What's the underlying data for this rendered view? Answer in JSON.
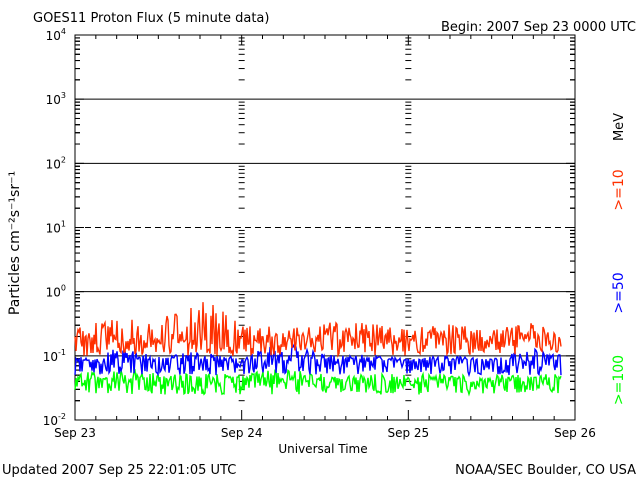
{
  "header": {
    "title": "GOES11 Proton Flux (5 minute data)",
    "begin": "Begin: 2007 Sep 23 0000 UTC"
  },
  "footer": {
    "updated": "Updated 2007 Sep 25 22:01:05 UTC",
    "credit": "NOAA/SEC Boulder, CO USA"
  },
  "chart_data": {
    "type": "line",
    "title": "GOES11 Proton Flux (5 minute data)",
    "xlabel": "Universal Time",
    "ylabel": "Particles cm⁻²s⁻¹sr⁻¹",
    "yscale": "log",
    "ylim": [
      0.01,
      10000
    ],
    "xlim": [
      "2007-09-23 00:00",
      "2007-09-26 00:00"
    ],
    "x_tick_labels": [
      "Sep 23",
      "Sep 24",
      "Sep 25",
      "Sep 26"
    ],
    "y_tick_labels": [
      {
        "base": "10",
        "exp": "4"
      },
      {
        "base": "10",
        "exp": "3"
      },
      {
        "base": "10",
        "exp": "2"
      },
      {
        "base": "10",
        "exp": "1"
      },
      {
        "base": "10",
        "exp": "0"
      },
      {
        "base": "10",
        "exp": "-1"
      },
      {
        "base": "10",
        "exp": "-2"
      }
    ],
    "unit_label": "MeV",
    "thresholds": [
      {
        "value": 1000,
        "style": "solid"
      },
      {
        "value": 100,
        "style": "solid"
      },
      {
        "value": 10,
        "style": "dashed"
      },
      {
        "value": 1,
        "style": "solid"
      },
      {
        "value": 0.1,
        "style": "solid"
      }
    ],
    "series": [
      {
        "name": ">=10",
        "color": "#ff3000",
        "baseline": 0.18,
        "min": 0.1,
        "max": 0.7,
        "x": [
          "2007-09-23 00:00",
          "2007-09-23 06:00",
          "2007-09-23 12:00",
          "2007-09-23 18:00",
          "2007-09-24 00:00",
          "2007-09-24 06:00",
          "2007-09-24 12:00",
          "2007-09-24 18:00",
          "2007-09-25 00:00",
          "2007-09-25 06:00",
          "2007-09-25 12:00",
          "2007-09-25 18:00",
          "2007-09-25 22:00"
        ],
        "values": [
          0.25,
          0.35,
          0.3,
          0.6,
          0.3,
          0.25,
          0.3,
          0.3,
          0.25,
          0.3,
          0.25,
          0.3,
          0.2
        ]
      },
      {
        "name": ">=50",
        "color": "#0000ff",
        "baseline": 0.085,
        "min": 0.05,
        "max": 0.18,
        "x": [
          "2007-09-23 00:00",
          "2007-09-23 06:00",
          "2007-09-23 12:00",
          "2007-09-23 18:00",
          "2007-09-24 00:00",
          "2007-09-24 06:00",
          "2007-09-24 12:00",
          "2007-09-24 18:00",
          "2007-09-25 00:00",
          "2007-09-25 06:00",
          "2007-09-25 12:00",
          "2007-09-25 18:00",
          "2007-09-25 22:00"
        ],
        "values": [
          0.09,
          0.12,
          0.1,
          0.11,
          0.09,
          0.15,
          0.1,
          0.1,
          0.09,
          0.1,
          0.09,
          0.12,
          0.1
        ]
      },
      {
        "name": ">=100",
        "color": "#00ff00",
        "baseline": 0.04,
        "min": 0.025,
        "max": 0.08,
        "x": [
          "2007-09-23 00:00",
          "2007-09-23 06:00",
          "2007-09-23 12:00",
          "2007-09-23 18:00",
          "2007-09-24 00:00",
          "2007-09-24 06:00",
          "2007-09-24 12:00",
          "2007-09-24 18:00",
          "2007-09-25 00:00",
          "2007-09-25 06:00",
          "2007-09-25 12:00",
          "2007-09-25 18:00",
          "2007-09-25 22:00"
        ],
        "values": [
          0.05,
          0.06,
          0.05,
          0.05,
          0.05,
          0.06,
          0.05,
          0.05,
          0.05,
          0.05,
          0.05,
          0.05,
          0.05
        ]
      }
    ]
  }
}
